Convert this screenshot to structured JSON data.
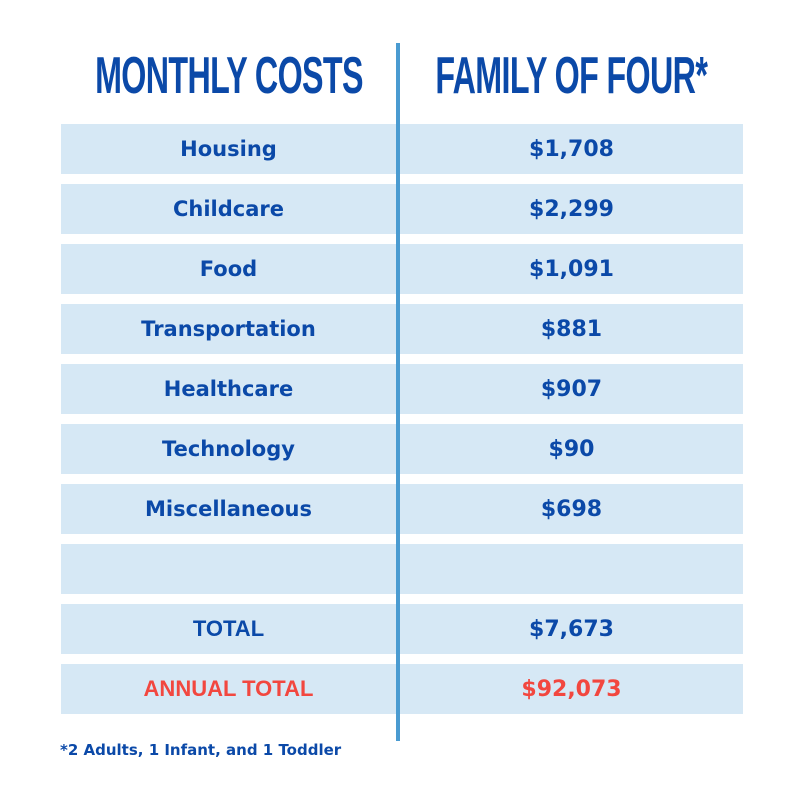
{
  "header": {
    "left_title": "MONTHLY COSTS",
    "right_title": "FAMILY OF FOUR*"
  },
  "rows": [
    {
      "label": "Housing",
      "value": "$1,708"
    },
    {
      "label": "Childcare",
      "value": "$2,299"
    },
    {
      "label": "Food",
      "value": "$1,091"
    },
    {
      "label": "Transportation",
      "value": "$881"
    },
    {
      "label": "Healthcare",
      "value": "$907"
    },
    {
      "label": "Technology",
      "value": "$90"
    },
    {
      "label": "Miscellaneous",
      "value": "$698"
    },
    {
      "label": "",
      "value": ""
    },
    {
      "label": "TOTAL",
      "value": "$7,673"
    },
    {
      "label": "ANNUAL TOTAL",
      "value": "$92,073"
    }
  ],
  "footnote": "*2 Adults, 1 Infant, and 1 Toddler",
  "colors": {
    "primary_text": "#0b49a8",
    "annual_total_text": "#f2473f",
    "row_background": "#d6e8f5",
    "divider": "#4a9bd1"
  }
}
